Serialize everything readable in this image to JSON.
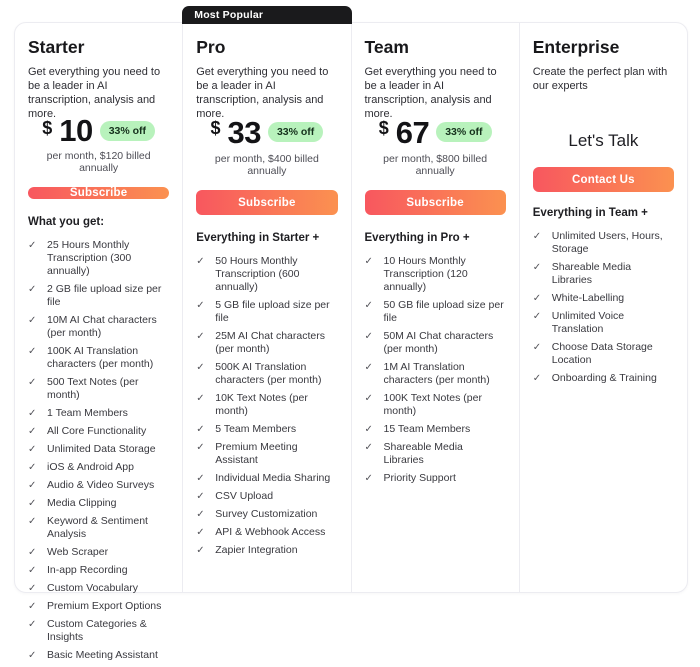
{
  "theme": {
    "accent_gradient_start": "#f8575f",
    "accent_gradient_end": "#fb9150",
    "discount_badge_bg": "#b8f2bc",
    "discount_badge_text": "#15301c",
    "popular_badge_bg": "#1a1a1c",
    "card_border": "#ececf1"
  },
  "icons": {
    "check": "✓"
  },
  "plans": [
    {
      "name": "Starter",
      "description": "Get everything you need to be a leader in AI transcription, analysis and more.",
      "price": {
        "currency": "$",
        "amount": "10"
      },
      "discount": "33% off",
      "billing_note": "per month, $120 billed annually",
      "cta_label": "Subscribe",
      "features_title": "What you get:",
      "features": [
        "25 Hours Monthly Transcription (300 annually)",
        "2 GB file upload size per file",
        "10M AI Chat characters (per month)",
        "100K AI Translation characters (per month)",
        "500 Text Notes (per month)",
        "1 Team Members",
        "All Core Functionality",
        "Unlimited Data Storage",
        "iOS & Android App",
        "Audio & Video Surveys",
        "Media Clipping",
        "Keyword & Sentiment Analysis",
        "Web Scraper",
        "In-app Recording",
        "Custom Vocabulary",
        "Premium Export Options",
        "Custom Categories & Insights",
        "Basic Meeting Assistant"
      ]
    },
    {
      "name": "Pro",
      "badge": "Most Popular",
      "description": "Get everything you need to be a leader in AI transcription, analysis and more.",
      "price": {
        "currency": "$",
        "amount": "33"
      },
      "discount": "33% off",
      "billing_note": "per month, $400 billed annually",
      "cta_label": "Subscribe",
      "features_title": "Everything in Starter +",
      "features": [
        "50 Hours Monthly Transcription (600 annually)",
        "5 GB file upload size per file",
        "25M AI Chat characters (per month)",
        "500K AI Translation characters (per month)",
        "10K Text Notes (per month)",
        "5 Team Members",
        "Premium Meeting Assistant",
        "Individual Media Sharing",
        "CSV Upload",
        "Survey Customization",
        "API & Webhook Access",
        "Zapier Integration"
      ]
    },
    {
      "name": "Team",
      "description": "Get everything you need to be a leader in AI transcription, analysis and more.",
      "price": {
        "currency": "$",
        "amount": "67"
      },
      "discount": "33% off",
      "billing_note": "per month, $800 billed annually",
      "cta_label": "Subscribe",
      "features_title": "Everything in Pro +",
      "features": [
        "10 Hours Monthly Transcription (120 annually)",
        "50 GB file upload size per file",
        "50M AI Chat characters (per month)",
        "1M AI Translation characters (per month)",
        "100K Text Notes (per month)",
        "15 Team Members",
        "Shareable Media Libraries",
        "Priority Support"
      ]
    },
    {
      "name": "Enterprise",
      "description": "Create the perfect plan with our experts",
      "custom_price_label": "Let's Talk",
      "cta_label": "Contact Us",
      "features_title": "Everything in Team +",
      "features": [
        "Unlimited Users, Hours, Storage",
        "Shareable Media Libraries",
        "White-Labelling",
        "Unlimited Voice Translation",
        "Choose Data Storage Location",
        "Onboarding & Training"
      ]
    }
  ]
}
